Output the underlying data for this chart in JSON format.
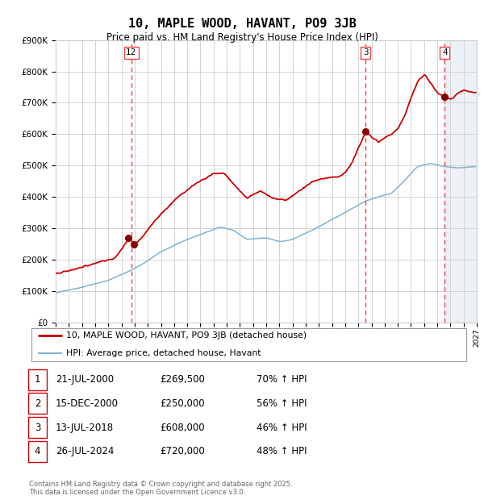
{
  "title": "10, MAPLE WOOD, HAVANT, PO9 3JB",
  "subtitle": "Price paid vs. HM Land Registry's House Price Index (HPI)",
  "xlim": [
    1995.0,
    2027.0
  ],
  "ylim": [
    0,
    900000
  ],
  "yticks": [
    0,
    100000,
    200000,
    300000,
    400000,
    500000,
    600000,
    700000,
    800000,
    900000
  ],
  "ytick_labels": [
    "£0",
    "£100K",
    "£200K",
    "£300K",
    "£400K",
    "£500K",
    "£600K",
    "£700K",
    "£800K",
    "£900K"
  ],
  "transactions": [
    {
      "id": 1,
      "date_str": "21-JUL-2000",
      "year": 2000.54,
      "price": 269500
    },
    {
      "id": 2,
      "date_str": "15-DEC-2000",
      "year": 2000.96,
      "price": 250000
    },
    {
      "id": 3,
      "date_str": "13-JUL-2018",
      "year": 2018.54,
      "price": 608000
    },
    {
      "id": 4,
      "date_str": "26-JUL-2024",
      "year": 2024.57,
      "price": 720000
    }
  ],
  "vlines": [
    {
      "x": 2000.75,
      "label": "12"
    },
    {
      "x": 2018.54,
      "label": "3"
    },
    {
      "x": 2024.57,
      "label": "4"
    }
  ],
  "legend_entries": [
    {
      "label": "10, MAPLE WOOD, HAVANT, PO9 3JB (detached house)",
      "color": "#cc0000",
      "lw": 2.0
    },
    {
      "label": "HPI: Average price, detached house, Havant",
      "color": "#7fb3d3",
      "lw": 1.5
    }
  ],
  "table_rows": [
    [
      "1",
      "21-JUL-2000",
      "£269,500",
      "70% ↑ HPI"
    ],
    [
      "2",
      "15-DEC-2000",
      "£250,000",
      "56% ↑ HPI"
    ],
    [
      "3",
      "13-JUL-2018",
      "£608,000",
      "46% ↑ HPI"
    ],
    [
      "4",
      "26-JUL-2024",
      "£720,000",
      "48% ↑ HPI"
    ]
  ],
  "footer": "Contains HM Land Registry data © Crown copyright and database right 2025.\nThis data is licensed under the Open Government Licence v3.0.",
  "hatch_start": 2024.57,
  "hatch_end": 2027.0,
  "grid_color": "#cccccc",
  "bg_color": "#ffffff",
  "hatch_color": "#c8d8e8",
  "red_line_color": "#cc0000",
  "blue_line_color": "#7fb3d3",
  "vline_color": "#ee4444",
  "dot_color": "#880000"
}
